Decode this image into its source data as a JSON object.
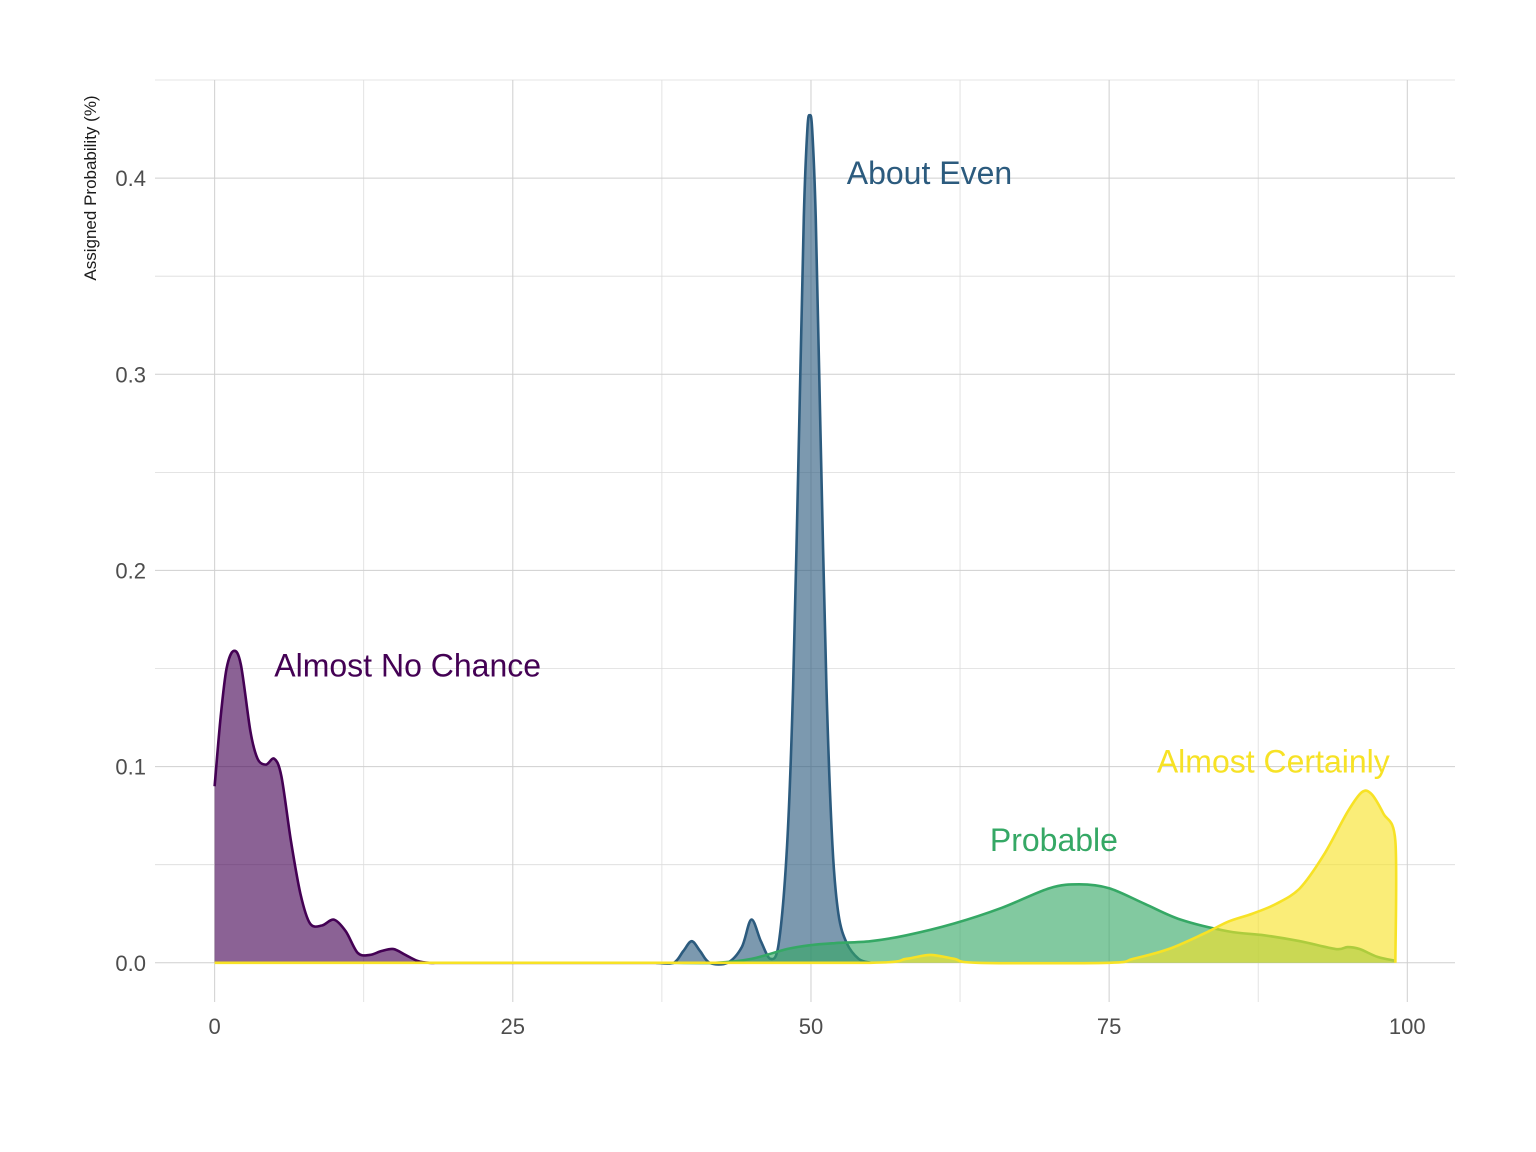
{
  "chart_data": {
    "type": "area",
    "xlabel": "",
    "ylabel": "Assigned Probability (%)",
    "xlim": [
      -5,
      104
    ],
    "ylim": [
      -0.02,
      0.45
    ],
    "x_ticks": [
      0,
      25,
      50,
      75,
      100
    ],
    "y_ticks": [
      0.0,
      0.1,
      0.2,
      0.3,
      0.4
    ],
    "x_tick_labels": [
      "0",
      "25",
      "50",
      "75",
      "100"
    ],
    "y_tick_labels": [
      "0.0",
      "0.1",
      "0.2",
      "0.3",
      "0.4"
    ],
    "grid": true,
    "legend": "none",
    "series": [
      {
        "name": "Almost No Chance",
        "color": "#440154",
        "label_at": [
          5,
          0.146
        ],
        "points": [
          [
            0,
            0.09
          ],
          [
            0.5,
            0.125
          ],
          [
            1,
            0.15
          ],
          [
            1.6,
            0.159
          ],
          [
            2.2,
            0.152
          ],
          [
            3,
            0.118
          ],
          [
            3.6,
            0.104
          ],
          [
            4.3,
            0.101
          ],
          [
            5,
            0.104
          ],
          [
            5.6,
            0.095
          ],
          [
            6.4,
            0.062
          ],
          [
            7.2,
            0.035
          ],
          [
            8,
            0.02
          ],
          [
            9,
            0.019
          ],
          [
            10,
            0.022
          ],
          [
            11,
            0.016
          ],
          [
            12,
            0.005
          ],
          [
            13,
            0.004
          ],
          [
            14,
            0.006
          ],
          [
            15,
            0.007
          ],
          [
            16,
            0.004
          ],
          [
            17,
            0.001
          ],
          [
            18,
            0.0
          ],
          [
            20,
            0.0
          ],
          [
            30,
            0.0
          ],
          [
            38,
            0.0
          ]
        ]
      },
      {
        "name": "About Even",
        "color": "#2c5b7e",
        "label_at": [
          53,
          0.397
        ],
        "points": [
          [
            37,
            0.0
          ],
          [
            38.5,
            0.0
          ],
          [
            39.3,
            0.006
          ],
          [
            40,
            0.011
          ],
          [
            40.7,
            0.006
          ],
          [
            41.5,
            0.0
          ],
          [
            43,
            0.0
          ],
          [
            44.2,
            0.008
          ],
          [
            45,
            0.022
          ],
          [
            45.8,
            0.011
          ],
          [
            46.6,
            0.002
          ],
          [
            47.3,
            0.01
          ],
          [
            48,
            0.06
          ],
          [
            48.5,
            0.14
          ],
          [
            49,
            0.27
          ],
          [
            49.4,
            0.38
          ],
          [
            49.7,
            0.425
          ],
          [
            49.9,
            0.432
          ],
          [
            50.1,
            0.425
          ],
          [
            50.4,
            0.38
          ],
          [
            50.8,
            0.27
          ],
          [
            51.3,
            0.14
          ],
          [
            51.8,
            0.06
          ],
          [
            52.3,
            0.025
          ],
          [
            53,
            0.01
          ],
          [
            54,
            0.002
          ],
          [
            55,
            0.0
          ]
        ]
      },
      {
        "name": "Probable",
        "color": "#35a865",
        "label_at": [
          65,
          0.057
        ],
        "points": [
          [
            38,
            0.0
          ],
          [
            42,
            0.0
          ],
          [
            45,
            0.002
          ],
          [
            48,
            0.007
          ],
          [
            50,
            0.009
          ],
          [
            52,
            0.01
          ],
          [
            55,
            0.011
          ],
          [
            58,
            0.014
          ],
          [
            62,
            0.02
          ],
          [
            66,
            0.028
          ],
          [
            70,
            0.038
          ],
          [
            72.5,
            0.04
          ],
          [
            75,
            0.038
          ],
          [
            78,
            0.03
          ],
          [
            81,
            0.022
          ],
          [
            85,
            0.016
          ],
          [
            88,
            0.014
          ],
          [
            91,
            0.011
          ],
          [
            94,
            0.007
          ],
          [
            95,
            0.008
          ],
          [
            96,
            0.007
          ],
          [
            97.5,
            0.003
          ],
          [
            99,
            0.001
          ]
        ]
      },
      {
        "name": "Almost Certainly",
        "color": "#f7e225",
        "label_at": [
          79,
          0.097
        ],
        "points": [
          [
            0,
            0.0
          ],
          [
            38,
            0.0
          ],
          [
            55,
            0.0
          ],
          [
            58,
            0.002
          ],
          [
            60,
            0.004
          ],
          [
            62,
            0.002
          ],
          [
            64,
            0.0
          ],
          [
            75,
            0.0
          ],
          [
            77,
            0.002
          ],
          [
            80,
            0.007
          ],
          [
            83,
            0.015
          ],
          [
            85,
            0.021
          ],
          [
            87,
            0.025
          ],
          [
            89,
            0.03
          ],
          [
            91,
            0.038
          ],
          [
            93,
            0.055
          ],
          [
            95,
            0.077
          ],
          [
            96.2,
            0.087
          ],
          [
            97,
            0.086
          ],
          [
            98,
            0.076
          ],
          [
            99,
            0.062
          ],
          [
            99,
            0.0
          ]
        ]
      }
    ]
  }
}
